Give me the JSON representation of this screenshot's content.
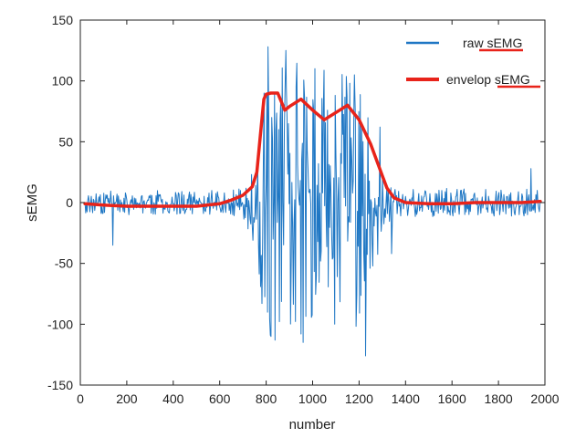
{
  "chart_data": {
    "type": "line",
    "title": "",
    "xlabel": "number",
    "ylabel": "sEMG",
    "xlim": [
      0,
      2000
    ],
    "ylim": [
      -150,
      150
    ],
    "xticks": [
      0,
      200,
      400,
      600,
      800,
      1000,
      1200,
      1400,
      1600,
      1800,
      2000
    ],
    "yticks": [
      -150,
      -100,
      -50,
      0,
      50,
      100,
      150
    ],
    "grid": false,
    "legend_position": "top-right",
    "series": [
      {
        "name": "raw sEMG",
        "color": "#1f77c4",
        "style": "noisy-raw-signal",
        "x_range": [
          20,
          1980
        ],
        "amplitude_profile": [
          {
            "x": 20,
            "amp": 10
          },
          {
            "x": 600,
            "amp": 10
          },
          {
            "x": 700,
            "amp": 13
          },
          {
            "x": 760,
            "amp": 45
          },
          {
            "x": 800,
            "amp": 118
          },
          {
            "x": 900,
            "amp": 120
          },
          {
            "x": 1000,
            "amp": 115
          },
          {
            "x": 1100,
            "amp": 110
          },
          {
            "x": 1200,
            "amp": 105
          },
          {
            "x": 1260,
            "amp": 55
          },
          {
            "x": 1320,
            "amp": 25
          },
          {
            "x": 1400,
            "amp": 12
          },
          {
            "x": 1980,
            "amp": 11
          }
        ],
        "peak_points": [
          {
            "x": 808,
            "y": 128
          },
          {
            "x": 838,
            "y": -113
          },
          {
            "x": 885,
            "y": 125
          },
          {
            "x": 950,
            "y": -108
          },
          {
            "x": 1010,
            "y": 110
          },
          {
            "x": 1095,
            "y": -100
          },
          {
            "x": 1180,
            "y": 105
          },
          {
            "x": 1228,
            "y": -126
          },
          {
            "x": 1290,
            "y": 62
          },
          {
            "x": 1340,
            "y": -42
          },
          {
            "x": 1940,
            "y": 28
          },
          {
            "x": 140,
            "y": -35
          }
        ]
      },
      {
        "name": "envelop sEMG",
        "color": "#e8231a",
        "x": [
          20,
          100,
          200,
          300,
          400,
          500,
          600,
          650,
          700,
          740,
          760,
          775,
          790,
          800,
          820,
          850,
          880,
          900,
          950,
          1000,
          1050,
          1100,
          1150,
          1200,
          1250,
          1300,
          1320,
          1350,
          1400,
          1500,
          1600,
          1700,
          1800,
          1900,
          1980
        ],
        "y": [
          -1,
          -2,
          -3,
          -3,
          -3,
          -3,
          -1,
          2,
          6,
          13,
          25,
          55,
          85,
          89,
          90,
          90,
          76,
          79,
          85,
          76,
          68,
          74,
          80,
          68,
          48,
          22,
          12,
          4,
          0,
          -1,
          -1,
          0,
          0,
          0,
          1
        ]
      }
    ]
  }
}
